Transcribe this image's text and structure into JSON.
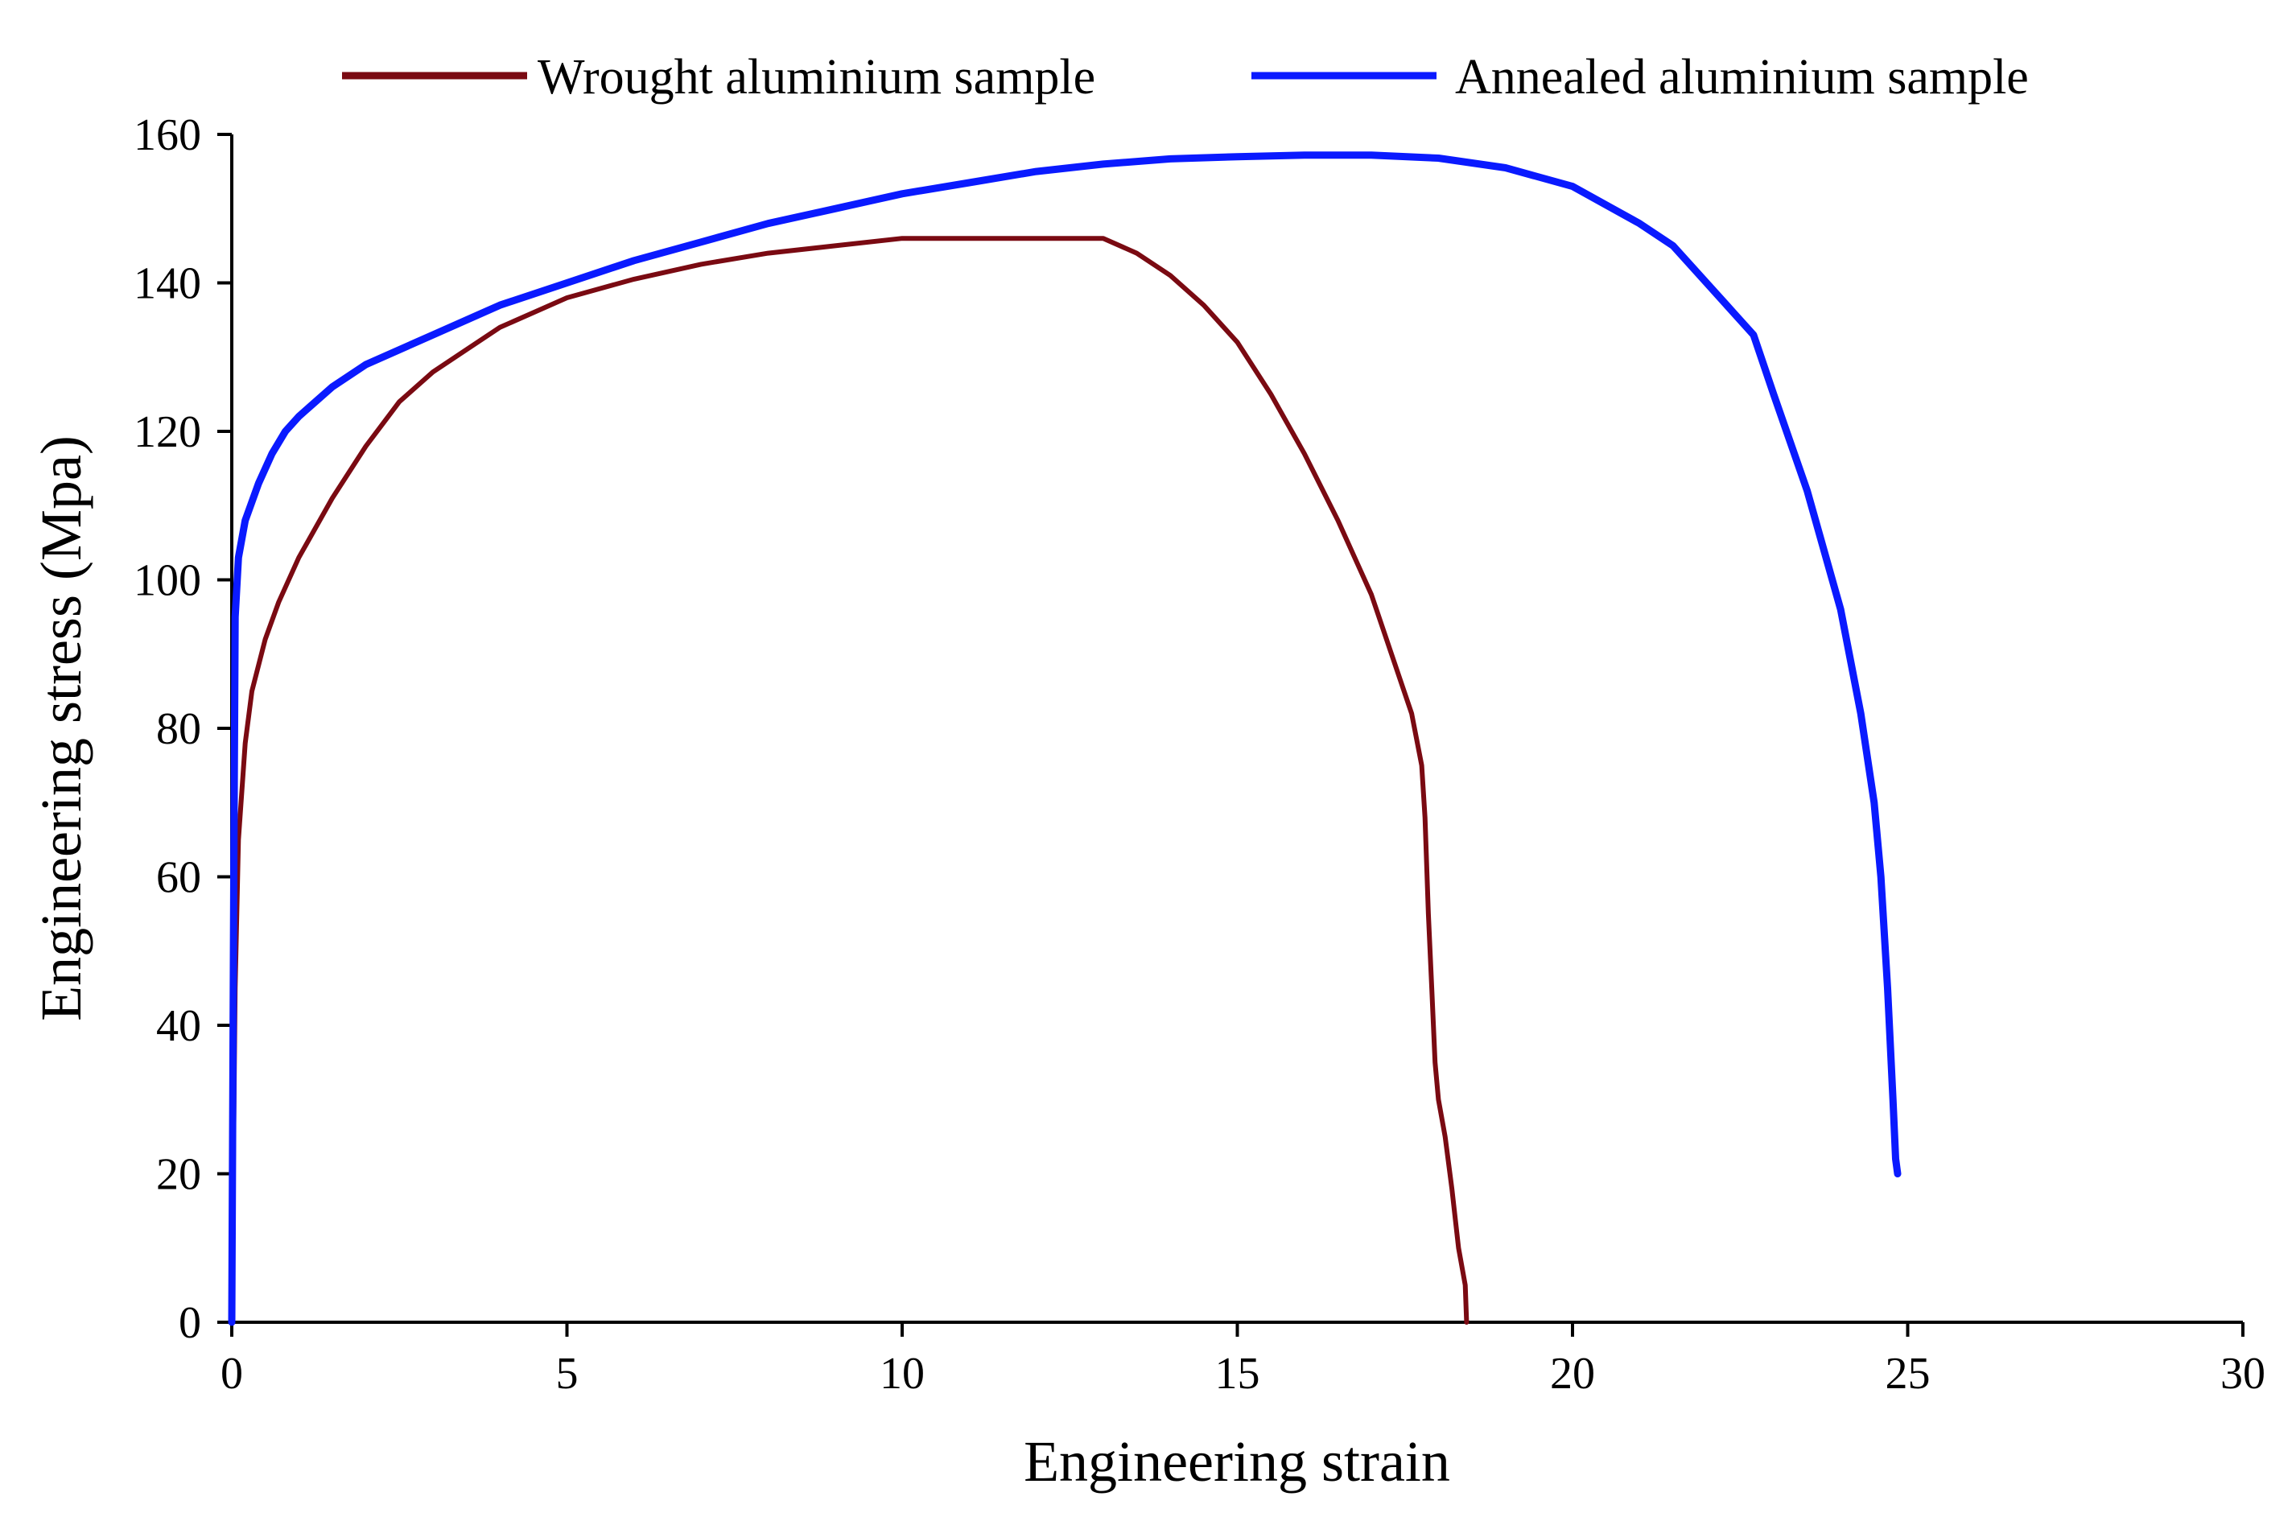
{
  "chart_data": {
    "type": "line",
    "title": "",
    "xlabel": "Engineering strain",
    "ylabel": "Engineering stress (Mpa)",
    "xlim": [
      0,
      30
    ],
    "ylim": [
      0,
      160
    ],
    "xticks": [
      0,
      5,
      10,
      15,
      20,
      25,
      30
    ],
    "yticks": [
      0,
      20,
      40,
      60,
      80,
      100,
      120,
      140,
      160
    ],
    "legend_position": "top",
    "grid": false,
    "series": [
      {
        "name": "Wrought aluminium sample",
        "color": "#7a0a12",
        "x": [
          0,
          0.05,
          0.1,
          0.2,
          0.3,
          0.5,
          0.7,
          1.0,
          1.5,
          2.0,
          2.5,
          3.0,
          3.5,
          4.0,
          5.0,
          6.0,
          7.0,
          8.0,
          9.0,
          10.0,
          11.0,
          12.0,
          13.0,
          13.5,
          14.0,
          14.5,
          15.0,
          15.5,
          16.0,
          16.5,
          17.0,
          17.3,
          17.6,
          17.75,
          17.8,
          17.85,
          17.9,
          17.95,
          18.0,
          18.1,
          18.2,
          18.3,
          18.4,
          18.42
        ],
        "y": [
          0,
          45,
          65,
          78,
          85,
          92,
          97,
          103,
          111,
          118,
          124,
          128,
          131,
          134,
          138,
          140.5,
          142.5,
          144,
          145,
          146,
          146,
          146,
          146,
          144,
          141,
          137,
          132,
          125,
          117,
          108,
          98,
          90,
          82,
          75,
          68,
          55,
          45,
          35,
          30,
          25,
          18,
          10,
          5,
          0
        ]
      },
      {
        "name": "Annealed aluminium sample",
        "color": "#0a1aff",
        "x": [
          0,
          0.03,
          0.05,
          0.1,
          0.2,
          0.4,
          0.6,
          0.8,
          1.0,
          1.5,
          2.0,
          3.0,
          4.0,
          5.0,
          6.0,
          7.0,
          8.0,
          9.0,
          10.0,
          11.0,
          12.0,
          13.0,
          14.0,
          15.0,
          16.0,
          17.0,
          18.0,
          19.0,
          20.0,
          21.0,
          21.5,
          22.0,
          22.3,
          22.7,
          23.0,
          23.5,
          24.0,
          24.3,
          24.5,
          24.6,
          24.7,
          24.78,
          24.82,
          24.85
        ],
        "y": [
          0,
          60,
          95,
          103,
          108,
          113,
          117,
          120,
          122,
          126,
          129,
          133,
          137,
          140,
          143,
          145.5,
          148,
          150,
          152,
          153.5,
          155,
          156,
          156.7,
          157,
          157.2,
          157.2,
          156.8,
          155.5,
          153,
          148,
          145,
          140,
          137,
          133,
          125,
          112,
          96,
          82,
          70,
          60,
          45,
          30,
          22,
          20
        ]
      }
    ]
  }
}
